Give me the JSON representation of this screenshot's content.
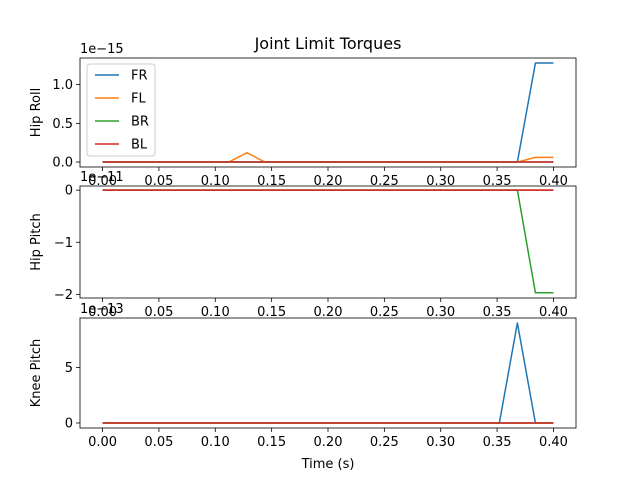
{
  "chart_data": {
    "type": "line",
    "title": "Joint Limit Torques",
    "xlabel": "Time (s)",
    "x": [
      0.0,
      0.016,
      0.032,
      0.048,
      0.064,
      0.08,
      0.096,
      0.112,
      0.128,
      0.144,
      0.16,
      0.176,
      0.192,
      0.208,
      0.224,
      0.24,
      0.256,
      0.272,
      0.288,
      0.304,
      0.32,
      0.336,
      0.352,
      0.368,
      0.384,
      0.4
    ],
    "xlim": [
      -0.02,
      0.42
    ],
    "xticks": [
      "0.00",
      "0.05",
      "0.10",
      "0.15",
      "0.20",
      "0.25",
      "0.30",
      "0.35",
      "0.40"
    ],
    "xtick_values": [
      0.0,
      0.05,
      0.1,
      0.15,
      0.2,
      0.25,
      0.3,
      0.35,
      0.4
    ],
    "legend": {
      "placement": "top-left",
      "entries": [
        "FR",
        "FL",
        "BR",
        "BL"
      ]
    },
    "colors": {
      "FR": "#1f77b4",
      "FL": "#ff7f0e",
      "BR": "#2ca02c",
      "BL": "#d62728"
    },
    "grid": false,
    "subplots": [
      {
        "ylabel": "Hip Roll",
        "offset_text": "1e−15",
        "scale": 1e-15,
        "ylim": [
          -0.064,
          1.344
        ],
        "yticks": [
          "0.0",
          "0.5",
          "1.0"
        ],
        "ytick_values": [
          0.0,
          0.5,
          1.0
        ],
        "series": [
          {
            "name": "FR",
            "values": [
              0,
              0,
              0,
              0,
              0,
              0,
              0,
              0,
              0,
              0,
              0,
              0,
              0,
              0,
              0,
              0,
              0,
              0,
              0,
              0,
              0,
              0,
              0,
              0,
              1.28,
              1.28
            ]
          },
          {
            "name": "FL",
            "values": [
              0,
              0,
              0,
              0,
              0,
              0,
              0,
              0,
              0.12,
              0,
              0,
              0,
              0,
              0,
              0,
              0,
              0,
              0,
              0,
              0,
              0,
              0,
              0,
              0,
              0.06,
              0.06
            ]
          },
          {
            "name": "BR",
            "values": [
              0,
              0,
              0,
              0,
              0,
              0,
              0,
              0,
              0,
              0,
              0,
              0,
              0,
              0,
              0,
              0,
              0,
              0,
              0,
              0,
              0,
              0,
              0,
              0,
              0,
              0
            ]
          },
          {
            "name": "BL",
            "values": [
              0,
              0,
              0,
              0,
              0,
              0,
              0,
              0,
              0,
              0,
              0,
              0,
              0,
              0,
              0,
              0,
              0,
              0,
              0,
              0,
              0,
              0,
              0,
              0,
              0,
              0
            ]
          }
        ]
      },
      {
        "ylabel": "Hip Pitch",
        "offset_text": "1e−11",
        "scale": 1e-11,
        "ylim": [
          -2.07,
          0.08
        ],
        "yticks": [
          "0",
          "−1",
          "−2"
        ],
        "ytick_values": [
          0,
          -1,
          -2
        ],
        "series": [
          {
            "name": "FR",
            "values": [
              0,
              0,
              0,
              0,
              0,
              0,
              0,
              0,
              0,
              0,
              0,
              0,
              0,
              0,
              0,
              0,
              0,
              0,
              0,
              0,
              0,
              0,
              0,
              0,
              0,
              0
            ]
          },
          {
            "name": "FL",
            "values": [
              0,
              0,
              0,
              0,
              0,
              0,
              0,
              0,
              0,
              0,
              0,
              0,
              0,
              0,
              0,
              0,
              0,
              0,
              0,
              0,
              0,
              0,
              0,
              0,
              0,
              0
            ]
          },
          {
            "name": "BR",
            "values": [
              0,
              0,
              0,
              0,
              0,
              0,
              0,
              0,
              0,
              0,
              0,
              0,
              0,
              0,
              0,
              0,
              0,
              0,
              0,
              0,
              0,
              0,
              0,
              0,
              -1.97,
              -1.97
            ]
          },
          {
            "name": "BL",
            "values": [
              0,
              0,
              0,
              0,
              0,
              0,
              0,
              0,
              0,
              0,
              0,
              0,
              0,
              0,
              0,
              0,
              0,
              0,
              0,
              0,
              0,
              0,
              0,
              0,
              0,
              0
            ]
          }
        ]
      },
      {
        "ylabel": "Knee Pitch",
        "offset_text": "1e−13",
        "scale": 1e-13,
        "ylim": [
          -0.45,
          9.45
        ],
        "yticks": [
          "0",
          "5"
        ],
        "ytick_values": [
          0,
          5
        ],
        "series": [
          {
            "name": "FR",
            "values": [
              0,
              0,
              0,
              0,
              0,
              0,
              0,
              0,
              0,
              0,
              0,
              0,
              0,
              0,
              0,
              0,
              0,
              0,
              0,
              0,
              0,
              0,
              0,
              9.0,
              0,
              0
            ]
          },
          {
            "name": "FL",
            "values": [
              0,
              0,
              0,
              0,
              0,
              0,
              0,
              0,
              0,
              0,
              0,
              0,
              0,
              0,
              0,
              0,
              0,
              0,
              0,
              0,
              0,
              0,
              0,
              0,
              0,
              0
            ]
          },
          {
            "name": "BR",
            "values": [
              0,
              0,
              0,
              0,
              0,
              0,
              0,
              0,
              0,
              0,
              0,
              0,
              0,
              0,
              0,
              0,
              0,
              0,
              0,
              0,
              0,
              0,
              0,
              0,
              0,
              0
            ]
          },
          {
            "name": "BL",
            "values": [
              0,
              0,
              0,
              0,
              0,
              0,
              0,
              0,
              0,
              0,
              0,
              0,
              0,
              0,
              0,
              0,
              0,
              0,
              0,
              0,
              0,
              0,
              0,
              0,
              0,
              0
            ]
          }
        ]
      }
    ]
  }
}
